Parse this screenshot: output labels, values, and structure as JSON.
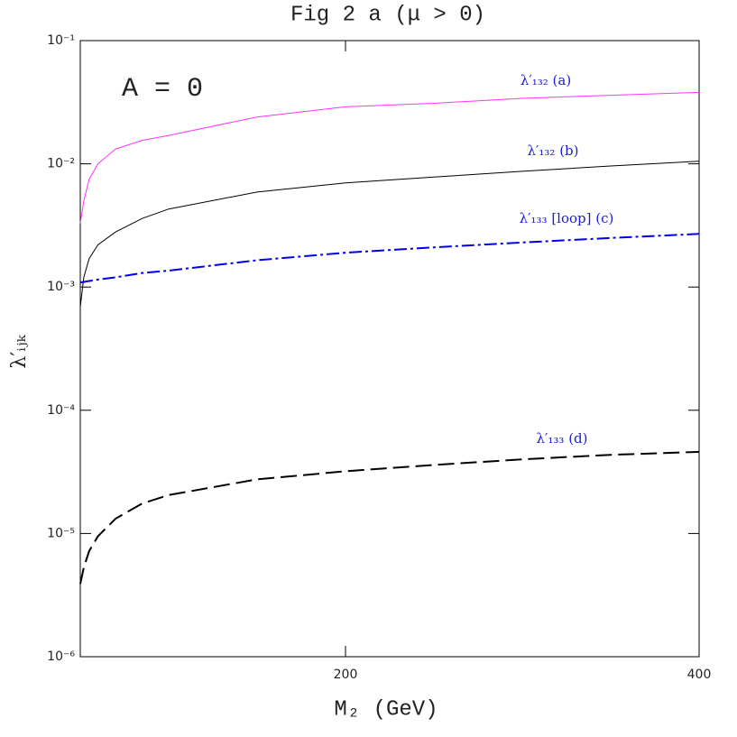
{
  "chart_data": {
    "type": "line",
    "title": "Fig 2 a (μ > 0)",
    "x_label": "M₂ (GeV)",
    "y_label": "λ′ᵢⱼₖ",
    "annotation": "A = 0",
    "annotation_color": "#5b5be0",
    "label_color": "#1a1ad8",
    "y_log": true,
    "xlim": [
      50,
      400
    ],
    "xticks": [
      200,
      400
    ],
    "ylim": [
      1e-06,
      0.1
    ],
    "yticks": [
      {
        "value": 0.1,
        "label": "10⁻¹"
      },
      {
        "value": 0.01,
        "label": "10⁻²"
      },
      {
        "value": 0.001,
        "label": "10⁻³"
      },
      {
        "value": 0.0001,
        "label": "10⁻⁴"
      },
      {
        "value": 1e-05,
        "label": "10⁻⁵"
      },
      {
        "value": 1e-06,
        "label": "10⁻⁶"
      }
    ],
    "x": [
      50,
      52,
      55,
      60,
      70,
      85,
      100,
      150,
      200,
      250,
      300,
      350,
      400
    ],
    "series": [
      {
        "name": "λ′₁₃₂  (a)",
        "color": "#ff33ff",
        "dash": "solid",
        "values": [
          0.0033,
          0.005,
          0.0075,
          0.01,
          0.0132,
          0.0155,
          0.017,
          0.024,
          0.029,
          0.031,
          0.034,
          0.036,
          0.038
        ]
      },
      {
        "name": "λ′₁₃₂  (b)",
        "color": "#000000",
        "dash": "solid",
        "values": [
          0.00069,
          0.0012,
          0.0017,
          0.0022,
          0.0028,
          0.0036,
          0.0043,
          0.0059,
          0.007,
          0.0078,
          0.0087,
          0.0096,
          0.0105
        ]
      },
      {
        "name": "λ′₁₃₃ [loop] (c)",
        "color": "#0000ee",
        "dash": "dashdot",
        "values": [
          0.00109,
          0.0011,
          0.00112,
          0.00115,
          0.0012,
          0.0013,
          0.00136,
          0.00165,
          0.0019,
          0.0021,
          0.0023,
          0.0025,
          0.0027
        ]
      },
      {
        "name": "λ′₁₃₃ (d)",
        "color": "#000000",
        "dash": "dashed",
        "values": [
          3.9e-06,
          5.3e-06,
          7.2e-06,
          9.5e-06,
          1.32e-05,
          1.75e-05,
          2.05e-05,
          2.75e-05,
          3.2e-05,
          3.6e-05,
          4e-05,
          4.35e-05,
          4.6e-05
        ]
      }
    ]
  }
}
